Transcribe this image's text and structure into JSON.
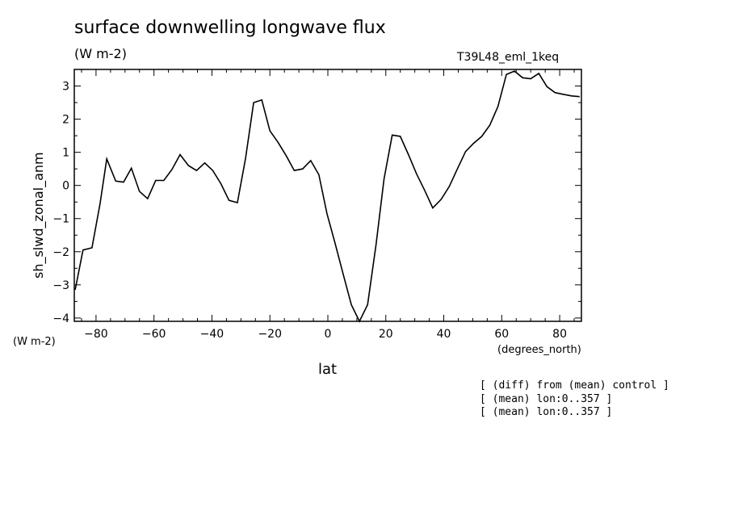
{
  "header": {
    "title": "surface downwelling longwave flux",
    "subtitle": "(W m-2)",
    "run_id": "T39L48_eml_1keq"
  },
  "axes": {
    "y_units": "(W m-2)",
    "x_units": "(degrees_north)",
    "x_label": "lat",
    "y_label": "sh_slwd_zonal_anm"
  },
  "notes": [
    "[ (diff) from (mean) control ]",
    "[ (mean) lon:0..357 ]",
    "[ (mean) lon:0..357 ]"
  ],
  "chart_data": {
    "type": "line",
    "xlim": [
      -87.5,
      87.5
    ],
    "ylim": [
      -4.1,
      3.5
    ],
    "x_ticks": [
      -80,
      -60,
      -40,
      -20,
      0,
      20,
      40,
      60,
      80
    ],
    "x_tick_labels": [
      "-80",
      "-60",
      "-40",
      "-20",
      "0",
      "20",
      "40",
      "60",
      "80"
    ],
    "y_ticks": [
      -4,
      -3,
      -2,
      -1,
      0,
      1,
      2,
      3
    ],
    "y_tick_labels": [
      "-4",
      "-3",
      "-2",
      "-1",
      "0",
      "1",
      "2",
      "3"
    ],
    "grid": false,
    "color": "#000000",
    "x": [
      -87.2,
      -84.5,
      -81.4,
      -78.6,
      -76.3,
      -73.2,
      -70.5,
      -67.8,
      -65.0,
      -62.2,
      -59.4,
      -56.6,
      -53.8,
      -51.0,
      -48.1,
      -45.3,
      -42.5,
      -39.7,
      -36.9,
      -34.1,
      -31.2,
      -28.4,
      -25.6,
      -22.8,
      -20.0,
      -17.2,
      -14.4,
      -11.6,
      -8.7,
      -5.9,
      -3.1,
      -0.3,
      2.5,
      5.3,
      8.1,
      10.9,
      13.7,
      16.6,
      19.4,
      22.2,
      25.0,
      27.8,
      30.6,
      33.4,
      36.2,
      39.1,
      41.9,
      44.7,
      47.5,
      50.3,
      53.1,
      55.9,
      58.7,
      61.6,
      64.4,
      67.2,
      70.0,
      72.8,
      75.6,
      78.4,
      81.2,
      84.1,
      86.9
    ],
    "y": [
      -3.15,
      -1.95,
      -1.88,
      -0.55,
      0.8,
      0.13,
      0.1,
      0.52,
      -0.18,
      -0.4,
      0.15,
      0.15,
      0.48,
      0.93,
      0.6,
      0.45,
      0.68,
      0.45,
      0.05,
      -0.45,
      -0.52,
      0.82,
      2.5,
      2.58,
      1.65,
      1.3,
      0.9,
      0.45,
      0.5,
      0.75,
      0.32,
      -0.85,
      -1.75,
      -2.68,
      -3.6,
      -4.1,
      -3.6,
      -1.8,
      0.2,
      1.52,
      1.48,
      0.93,
      0.35,
      -0.15,
      -0.68,
      -0.42,
      -0.03,
      0.5,
      1.02,
      1.27,
      1.48,
      1.82,
      2.38,
      3.35,
      3.45,
      3.25,
      3.22,
      3.38,
      2.98,
      2.8,
      2.75,
      2.7,
      2.68
    ]
  }
}
